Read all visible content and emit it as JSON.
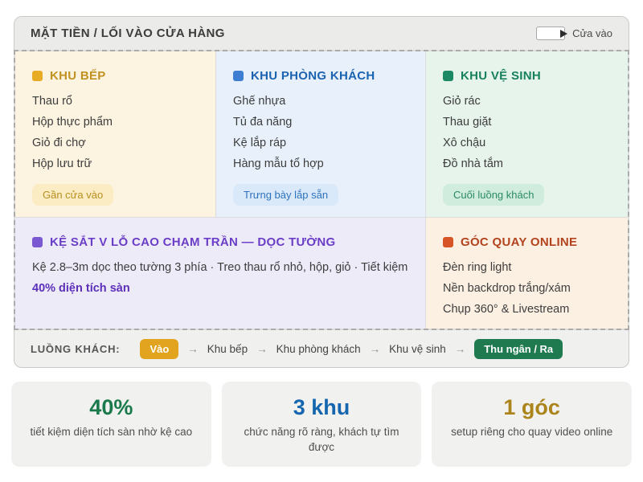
{
  "header": {
    "title": "MẶT TIỀN / LỐI VÀO CỬA HÀNG",
    "entrance_label": "Cửa vào"
  },
  "zones": [
    {
      "title": "KHU BẾP",
      "items": [
        "Thau rổ",
        "Hộp thực phẩm",
        "Giỏ đi chợ",
        "Hộp lưu trữ"
      ],
      "badge": "Gần cửa vào",
      "accent": "#c19222",
      "bg": "#fcf3e0"
    },
    {
      "title": "KHU PHÒNG KHÁCH",
      "items": [
        "Ghế nhựa",
        "Tủ đa năng",
        "Kệ lắp ráp",
        "Hàng mẫu tổ hợp"
      ],
      "badge": "Trưng bày lắp sẵn",
      "accent": "#1b63b0",
      "bg": "#e8f1fb"
    },
    {
      "title": "KHU VỆ SINH",
      "items": [
        "Giỏ rác",
        "Thau giặt",
        "Xô chậu",
        "Đồ nhà tắm"
      ],
      "badge": "Cuối luồng khách",
      "accent": "#17805f",
      "bg": "#e6f4ec"
    }
  ],
  "wall_shelf": {
    "title": "KỆ SẮT V LỖ CAO CHẠM TRẦN — DỌC TƯỜNG",
    "desc": "Kệ 2.8–3m dọc theo tường 3 phía · Treo thau rổ nhỏ, hộp, giỏ · Tiết kiệm ",
    "desc_highlight": "40% diện tích sàn",
    "accent": "#6a3ec6",
    "bg": "#eeebf9"
  },
  "online_corner": {
    "title": "GÓC QUAY ONLINE",
    "items": [
      "Đèn ring light",
      "Nền backdrop trắng/xám",
      "Chụp 360° & Livestream"
    ],
    "accent": "#b2431d",
    "bg": "#fcf0e3"
  },
  "flow": {
    "label": "LUỒNG KHÁCH:",
    "entry_badge": "Vào",
    "steps": [
      "Khu bếp",
      "Khu phòng khách",
      "Khu vệ sinh"
    ],
    "exit_badge": "Thu ngân / Ra",
    "arrow": "→",
    "entry_badge_color": "#e2a41e",
    "exit_badge_color": "#1f7a50"
  },
  "stats": [
    {
      "value": "40%",
      "caption": "tiết kiệm diện tích sàn nhờ kệ cao",
      "color": "#1b7a4c"
    },
    {
      "value": "3 khu",
      "caption": "chức năng rõ ràng, khách tự tìm được",
      "color": "#1566ae"
    },
    {
      "value": "1 góc",
      "caption": "setup riêng cho quay video online",
      "color": "#ab841c"
    }
  ]
}
